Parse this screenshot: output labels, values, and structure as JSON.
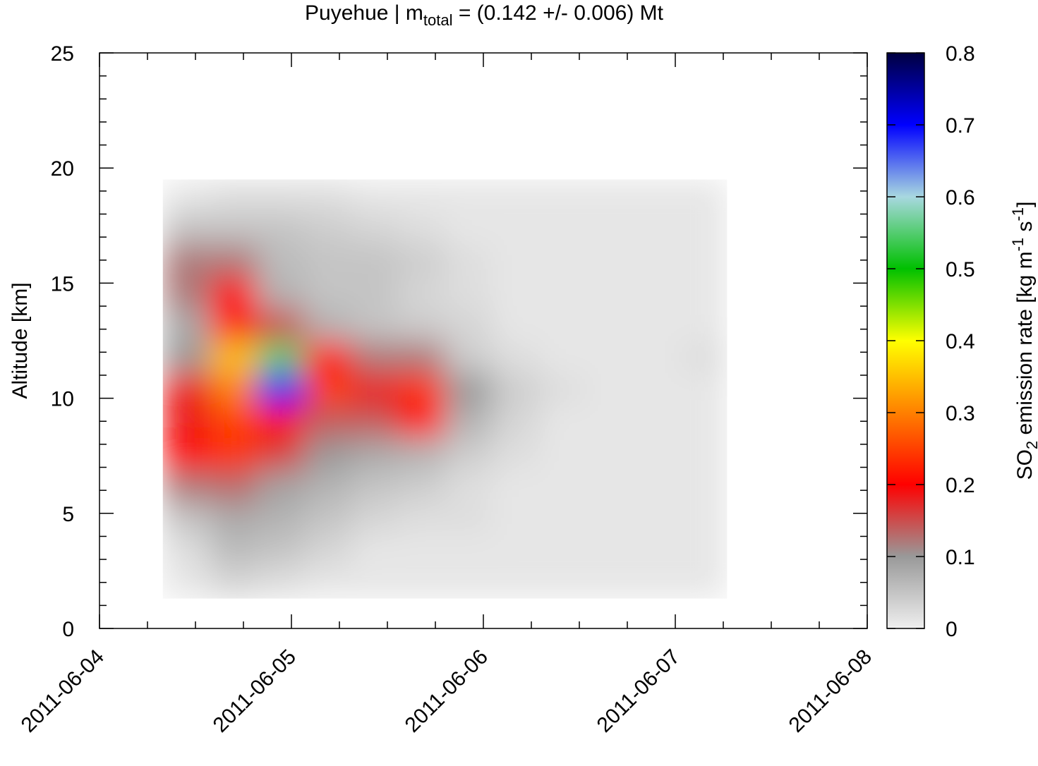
{
  "chart_data": {
    "type": "heatmap",
    "title": {
      "prefix": "Puyehue | m",
      "sub": "total",
      "suffix": " = (0.142 +/- 0.006) Mt"
    },
    "ylabel": "Altitude [km]",
    "colorbar_label": {
      "a": "SO",
      "a_sub": "2",
      "b": " emission rate [kg m",
      "b_sup": "-1",
      "c": " s",
      "c_sup": "-1",
      "d": "]"
    },
    "xlim": [
      0,
      4
    ],
    "xticks": [
      {
        "value": 0,
        "label": "2011-06-04"
      },
      {
        "value": 1,
        "label": "2011-06-05"
      },
      {
        "value": 2,
        "label": "2011-06-06"
      },
      {
        "value": 3,
        "label": "2011-06-07"
      },
      {
        "value": 4,
        "label": "2011-06-08"
      }
    ],
    "xminorticks": [
      0.25,
      0.5,
      0.75,
      1.25,
      1.5,
      1.75,
      2.25,
      2.5,
      2.75,
      3.25,
      3.5,
      3.75
    ],
    "ylim": [
      0,
      25
    ],
    "yticks": [
      0,
      5,
      10,
      15,
      20,
      25
    ],
    "yminorticks": [
      1,
      2,
      3,
      4,
      6,
      7,
      8,
      9,
      11,
      12,
      13,
      14,
      16,
      17,
      18,
      19,
      21,
      22,
      23,
      24
    ],
    "x_edges": [
      0.33,
      0.575,
      0.82,
      1.065,
      1.31,
      1.555,
      1.8,
      2.045,
      2.29,
      2.535,
      2.78,
      3.025,
      3.27
    ],
    "y_edges": [
      1.3,
      2.7,
      4.1,
      5.5,
      6.9,
      8.3,
      9.7,
      11.1,
      12.5,
      13.9,
      15.3,
      16.7,
      18.1,
      19.5
    ],
    "values": [
      [
        0.01,
        0.03,
        0.02,
        0.01,
        0.01,
        0.01,
        0.01,
        0.01,
        0.01,
        0.01,
        0.01,
        0.01
      ],
      [
        0.02,
        0.06,
        0.05,
        0.03,
        0.01,
        0.01,
        0.01,
        0.01,
        0.01,
        0.01,
        0.01,
        0.01
      ],
      [
        0.05,
        0.08,
        0.07,
        0.05,
        0.03,
        0.02,
        0.02,
        0.01,
        0.01,
        0.01,
        0.01,
        0.01
      ],
      [
        0.12,
        0.13,
        0.09,
        0.07,
        0.05,
        0.04,
        0.02,
        0.01,
        0.01,
        0.01,
        0.01,
        0.01
      ],
      [
        0.2,
        0.24,
        0.16,
        0.1,
        0.08,
        0.07,
        0.04,
        0.02,
        0.01,
        0.01,
        0.01,
        0.01
      ],
      [
        0.18,
        0.25,
        0.2,
        0.14,
        0.14,
        0.2,
        0.07,
        0.03,
        0.01,
        0.01,
        0.01,
        0.01
      ],
      [
        0.18,
        0.3,
        0.7,
        0.25,
        0.18,
        0.24,
        0.1,
        0.04,
        0.02,
        0.01,
        0.01,
        0.01
      ],
      [
        0.1,
        0.35,
        0.55,
        0.2,
        0.12,
        0.12,
        0.04,
        0.02,
        0.01,
        0.01,
        0.01,
        0.02
      ],
      [
        0.08,
        0.22,
        0.15,
        0.07,
        0.05,
        0.04,
        0.03,
        0.01,
        0.01,
        0.01,
        0.01,
        0.01
      ],
      [
        0.12,
        0.2,
        0.07,
        0.05,
        0.05,
        0.03,
        0.02,
        0.01,
        0.01,
        0.01,
        0.01,
        0.01
      ],
      [
        0.12,
        0.12,
        0.06,
        0.05,
        0.05,
        0.04,
        0.02,
        0.01,
        0.01,
        0.01,
        0.01,
        0.01
      ],
      [
        0.05,
        0.05,
        0.05,
        0.04,
        0.03,
        0.02,
        0.01,
        0.01,
        0.01,
        0.01,
        0.01,
        0.01
      ],
      [
        0.01,
        0.02,
        0.02,
        0.02,
        0.01,
        0.01,
        0.01,
        0.01,
        0.01,
        0.01,
        0.01,
        0.01
      ]
    ],
    "clim": [
      0,
      0.8
    ],
    "cticks": [
      0,
      0.1,
      0.2,
      0.3,
      0.4,
      0.5,
      0.6,
      0.7,
      0.8
    ],
    "colormap": [
      {
        "value": 0,
        "color": "#efefef"
      },
      {
        "value": 0.1,
        "color": "#999999"
      },
      {
        "value": 0.2,
        "color": "#ff0000"
      },
      {
        "value": 0.3,
        "color": "#ff8000"
      },
      {
        "value": 0.4,
        "color": "#ffff00"
      },
      {
        "value": 0.5,
        "color": "#00c000"
      },
      {
        "value": 0.6,
        "color": "#a8d8e0"
      },
      {
        "value": 0.7,
        "color": "#0000ff"
      },
      {
        "value": 0.8,
        "color": "#000040"
      }
    ]
  }
}
